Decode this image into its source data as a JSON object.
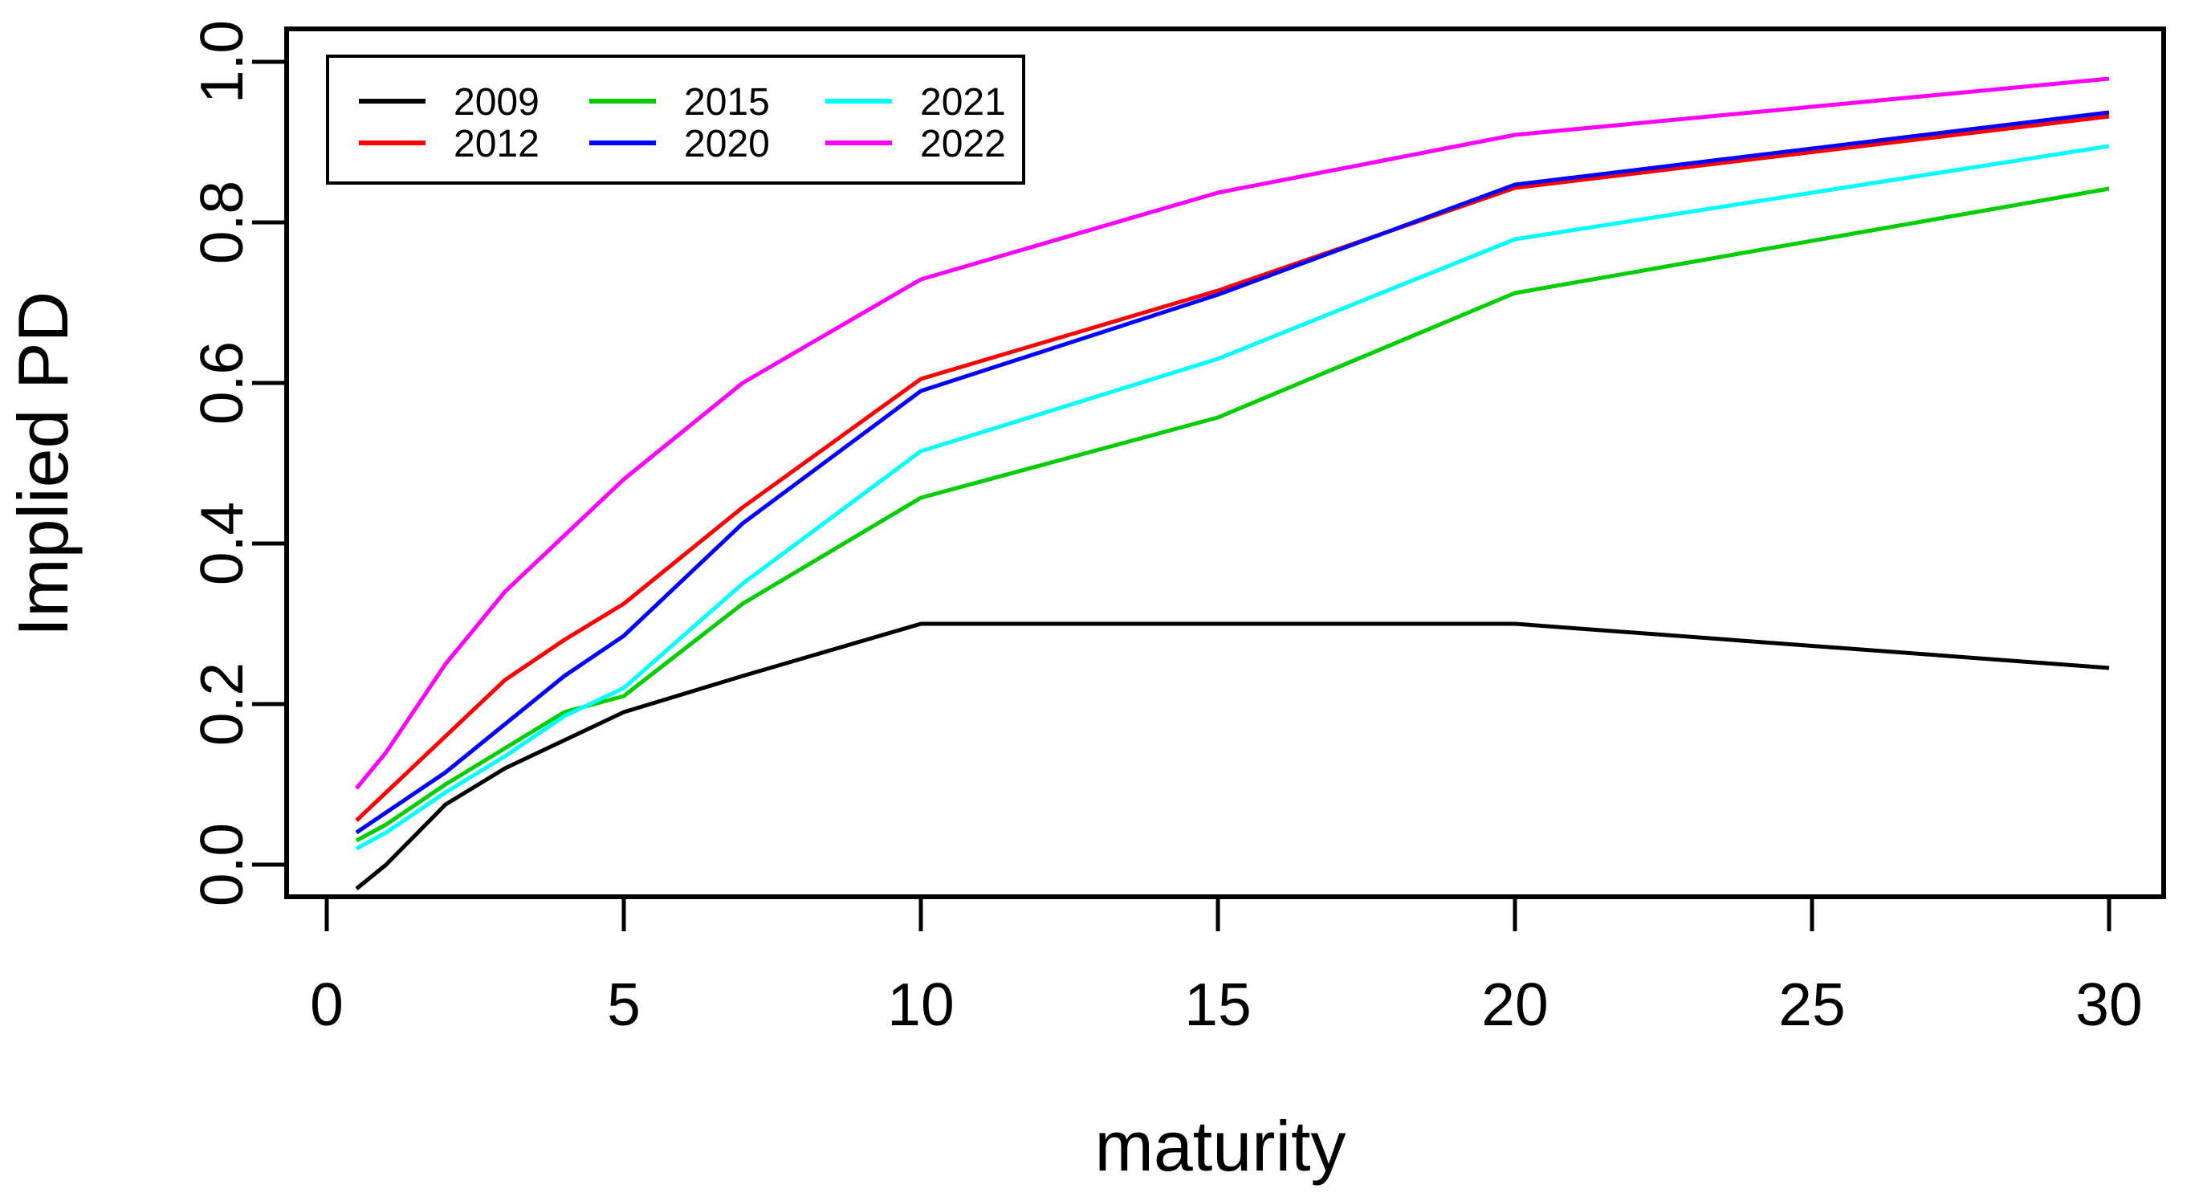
{
  "chart_data": {
    "type": "line",
    "title": "",
    "xlabel": "maturity",
    "ylabel": "Implied PD",
    "background": "#FFFFFF",
    "axis_color": "#000000",
    "grid": false,
    "xlim": [
      0.5,
      30
    ],
    "ylim": [
      -0.04,
      1.04
    ],
    "x_ticks": [
      0,
      5,
      10,
      15,
      20,
      25,
      30
    ],
    "x_tick_labels": [
      "0",
      "5",
      "10",
      "15",
      "20",
      "25",
      "30"
    ],
    "y_ticks": [
      0,
      0.2,
      0.4,
      0.6,
      0.8,
      1.0
    ],
    "y_tick_labels": [
      "0.0",
      "0.2",
      "0.4",
      "0.6",
      "0.8",
      "1.0"
    ],
    "x": [
      0.5,
      1,
      2,
      3,
      4,
      5,
      7,
      10,
      15,
      20,
      30
    ],
    "series": [
      {
        "name": "2009",
        "color": "#000000",
        "values": [
          -0.03,
          0.0,
          0.075,
          0.12,
          0.155,
          0.19,
          0.235,
          0.3,
          0.3,
          0.3,
          0.245
        ]
      },
      {
        "name": "2012",
        "color": "#FF0000",
        "values": [
          0.055,
          0.09,
          0.16,
          0.23,
          0.28,
          0.325,
          0.445,
          0.605,
          0.715,
          0.843,
          0.932
        ]
      },
      {
        "name": "2015",
        "color": "#00CD00",
        "values": [
          0.03,
          0.05,
          0.1,
          0.145,
          0.19,
          0.21,
          0.325,
          0.457,
          0.557,
          0.712,
          0.842
        ]
      },
      {
        "name": "2020",
        "color": "#0000FF",
        "values": [
          0.04,
          0.065,
          0.115,
          0.175,
          0.235,
          0.285,
          0.425,
          0.59,
          0.71,
          0.847,
          0.937
        ]
      },
      {
        "name": "2021",
        "color": "#00FFFF",
        "values": [
          0.02,
          0.04,
          0.09,
          0.135,
          0.185,
          0.22,
          0.35,
          0.515,
          0.63,
          0.779,
          0.895
        ]
      },
      {
        "name": "2022",
        "color": "#FF00FF",
        "values": [
          0.095,
          0.14,
          0.25,
          0.34,
          0.41,
          0.48,
          0.6,
          0.729,
          0.837,
          0.909,
          0.979
        ]
      }
    ],
    "legend_position": "top-left",
    "legend_columns": 3,
    "legend_layout_column_major": [
      [
        "2009",
        "2012"
      ],
      [
        "2015",
        "2020"
      ],
      [
        "2021",
        "2022"
      ]
    ]
  }
}
